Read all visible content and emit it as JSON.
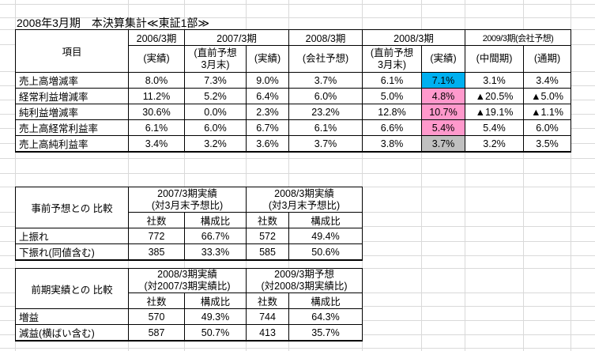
{
  "title": "2008年3月期　本決算集計≪東証1部≫",
  "colors": {
    "highlight_cyan": "#00B0F0",
    "highlight_pink": "#FF99CC",
    "highlight_gray": "#C0C0C0"
  },
  "main_table": {
    "item_header": "項目",
    "col_groups": [
      {
        "label": "2006/3期",
        "subs": [
          "(実績)"
        ]
      },
      {
        "label": "2007/3期",
        "subs": [
          "(直前予想\n3月末)",
          "(実績)"
        ]
      },
      {
        "label": "2008/3期",
        "subs": [
          "(会社予想)"
        ]
      },
      {
        "label": "2008/3期",
        "subs": [
          "(直前予想\n3月末)",
          "(実績)"
        ]
      },
      {
        "label": "2009/3期(会社予想)",
        "subs": [
          "(中間期)",
          "(通期)"
        ]
      }
    ],
    "rows": [
      {
        "label": "売上高増減率",
        "values": [
          "8.0%",
          "7.3%",
          "9.0%",
          "3.7%",
          "6.1%",
          "7.1%",
          "3.1%",
          "3.4%"
        ]
      },
      {
        "label": "経常利益増減率",
        "values": [
          "11.2%",
          "5.2%",
          "6.4%",
          "6.0%",
          "5.0%",
          "4.8%",
          "▲20.5%",
          "▲5.0%"
        ]
      },
      {
        "label": "純利益増減率",
        "values": [
          "30.6%",
          "0.0%",
          "2.3%",
          "23.2%",
          "12.8%",
          "10.7%",
          "▲19.1%",
          "▲1.1%"
        ]
      },
      {
        "label": "売上高経常利益率",
        "values": [
          "6.1%",
          "6.0%",
          "6.7%",
          "6.1%",
          "6.6%",
          "5.4%",
          "5.4%",
          "6.0%"
        ]
      },
      {
        "label": "売上高純利益率",
        "values": [
          "3.4%",
          "3.2%",
          "3.6%",
          "3.7%",
          "3.8%",
          "3.7%",
          "3.2%",
          "3.5%"
        ]
      }
    ]
  },
  "forecast_table": {
    "row_header": "事前予想との 比較",
    "groups": [
      {
        "label": "2007/3期実績\n(対3月末予想比)"
      },
      {
        "label": "2008/3期実績\n(対3月末予想比)"
      }
    ],
    "sub_headers": [
      "社数",
      "構成比",
      "社数",
      "構成比"
    ],
    "rows": [
      {
        "label": "上振れ",
        "values": [
          "772",
          "66.7%",
          "572",
          "49.4%"
        ]
      },
      {
        "label": "下振れ(同値含む)",
        "values": [
          "385",
          "33.3%",
          "585",
          "50.6%"
        ]
      }
    ]
  },
  "previous_table": {
    "row_header": "前期実績との 比較",
    "groups": [
      {
        "label": "2008/3期実績\n(対2007/3期実績比)"
      },
      {
        "label": "2009/3期予想\n(対2008/3期実績比)"
      }
    ],
    "sub_headers": [
      "社数",
      "構成比",
      "社数",
      "構成比"
    ],
    "rows": [
      {
        "label": "増益",
        "values": [
          "570",
          "49.3%",
          "744",
          "64.3%"
        ]
      },
      {
        "label": "減益(横ばい含む)",
        "values": [
          "587",
          "50.7%",
          "413",
          "35.7%"
        ]
      }
    ]
  }
}
